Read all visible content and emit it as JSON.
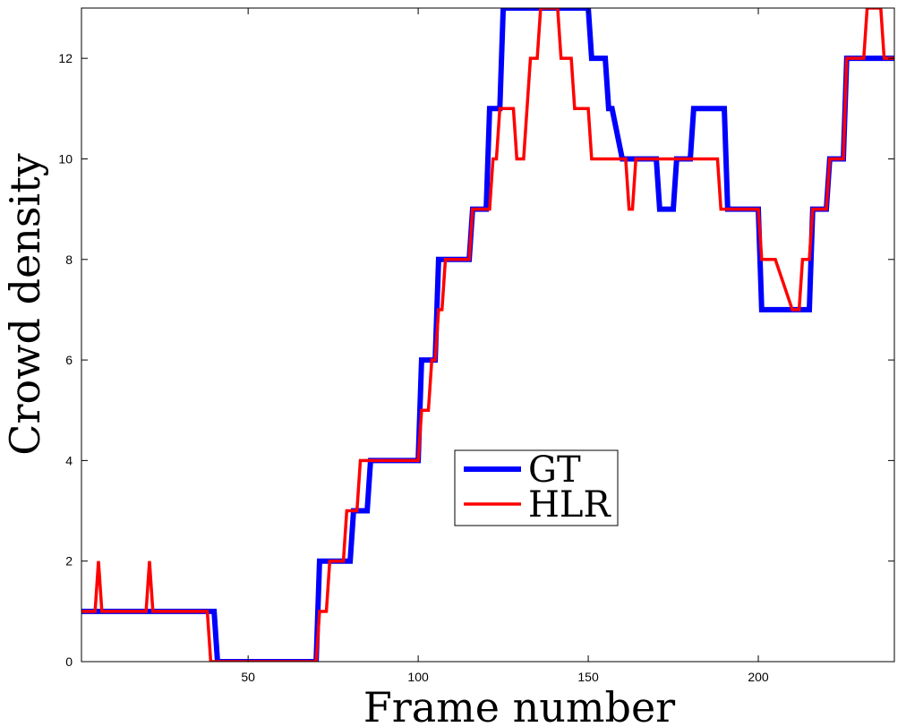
{
  "chart_data": {
    "type": "line",
    "title": "",
    "xlabel": "Frame number",
    "ylabel": "Crowd density",
    "xlim": [
      1,
      240
    ],
    "ylim": [
      0,
      13
    ],
    "xticks": [
      50,
      100,
      150,
      200
    ],
    "yticks": [
      0,
      2,
      4,
      6,
      8,
      10,
      12
    ],
    "grid": false,
    "legend_position": "center",
    "series": [
      {
        "name": "GT",
        "color": "#0000ff",
        "x": [
          1,
          40,
          41,
          70,
          71,
          75,
          80,
          81,
          84,
          85,
          86,
          87,
          100,
          101,
          103,
          104,
          105,
          106,
          107,
          110,
          115,
          116,
          120,
          121,
          122,
          123,
          124,
          125,
          126,
          128,
          150,
          151,
          152,
          155,
          156,
          157,
          160,
          161,
          165,
          170,
          171,
          173,
          175,
          176,
          180,
          181,
          183,
          185,
          188,
          190,
          191,
          200,
          201,
          205,
          210,
          215,
          216,
          220,
          221,
          223,
          225,
          226,
          240
        ],
        "y": [
          1,
          1,
          0,
          0,
          2,
          2,
          2,
          3,
          3,
          3,
          4,
          4,
          4,
          6,
          6,
          6,
          6,
          8,
          8,
          8,
          8,
          9,
          9,
          11,
          11,
          11,
          11,
          13,
          13,
          13,
          13,
          12,
          12,
          12,
          11,
          11,
          10,
          10,
          10,
          10,
          9,
          9,
          9,
          10,
          10,
          11,
          11,
          11,
          11,
          11,
          9,
          9,
          7,
          7,
          7,
          7,
          9,
          9,
          10,
          10,
          10,
          12,
          12
        ]
      },
      {
        "name": "HLR",
        "color": "#ff0000",
        "x": [
          1,
          5,
          6,
          7,
          8,
          15,
          20,
          21,
          22,
          23,
          30,
          38,
          39,
          40,
          70,
          71,
          72,
          73,
          74,
          75,
          78,
          79,
          80,
          81,
          82,
          83,
          84,
          85,
          86,
          87,
          88,
          90,
          95,
          100,
          101,
          102,
          103,
          104,
          105,
          106,
          107,
          108,
          109,
          110,
          115,
          116,
          117,
          120,
          121,
          122,
          123,
          124,
          125,
          126,
          127,
          128,
          129,
          130,
          131,
          132,
          133,
          134,
          135,
          136,
          137,
          138,
          139,
          140,
          141,
          142,
          145,
          146,
          147,
          148,
          150,
          151,
          152,
          155,
          160,
          161,
          162,
          163,
          164,
          165,
          170,
          175,
          180,
          185,
          188,
          189,
          190,
          195,
          196,
          197,
          200,
          201,
          202,
          203,
          205,
          210,
          211,
          212,
          213,
          214,
          215,
          216,
          217,
          220,
          221,
          222,
          225,
          226,
          227,
          230,
          231,
          232,
          235,
          236,
          237,
          240
        ],
        "y": [
          1,
          1,
          2,
          1,
          1,
          1,
          1,
          2,
          1,
          1,
          1,
          1,
          0,
          0,
          0,
          1,
          1,
          1,
          2,
          2,
          2,
          3,
          3,
          3,
          3,
          4,
          4,
          4,
          4,
          4,
          4,
          4,
          4,
          4,
          5,
          5,
          5,
          6,
          6,
          7,
          7,
          8,
          8,
          8,
          8,
          9,
          9,
          9,
          9,
          10,
          10,
          11,
          11,
          11,
          11,
          11,
          10,
          10,
          10,
          11,
          12,
          12,
          12,
          13,
          13,
          13,
          13,
          13,
          13,
          12,
          12,
          11,
          11,
          11,
          11,
          10,
          10,
          10,
          10,
          10,
          9,
          9,
          10,
          10,
          10,
          10,
          10,
          10,
          10,
          9,
          9,
          9,
          9,
          9,
          9,
          8,
          8,
          8,
          8,
          7,
          7,
          7,
          8,
          8,
          8,
          9,
          9,
          9,
          10,
          10,
          10,
          12,
          12,
          12,
          12,
          13,
          13,
          13,
          12,
          12
        ]
      }
    ]
  }
}
